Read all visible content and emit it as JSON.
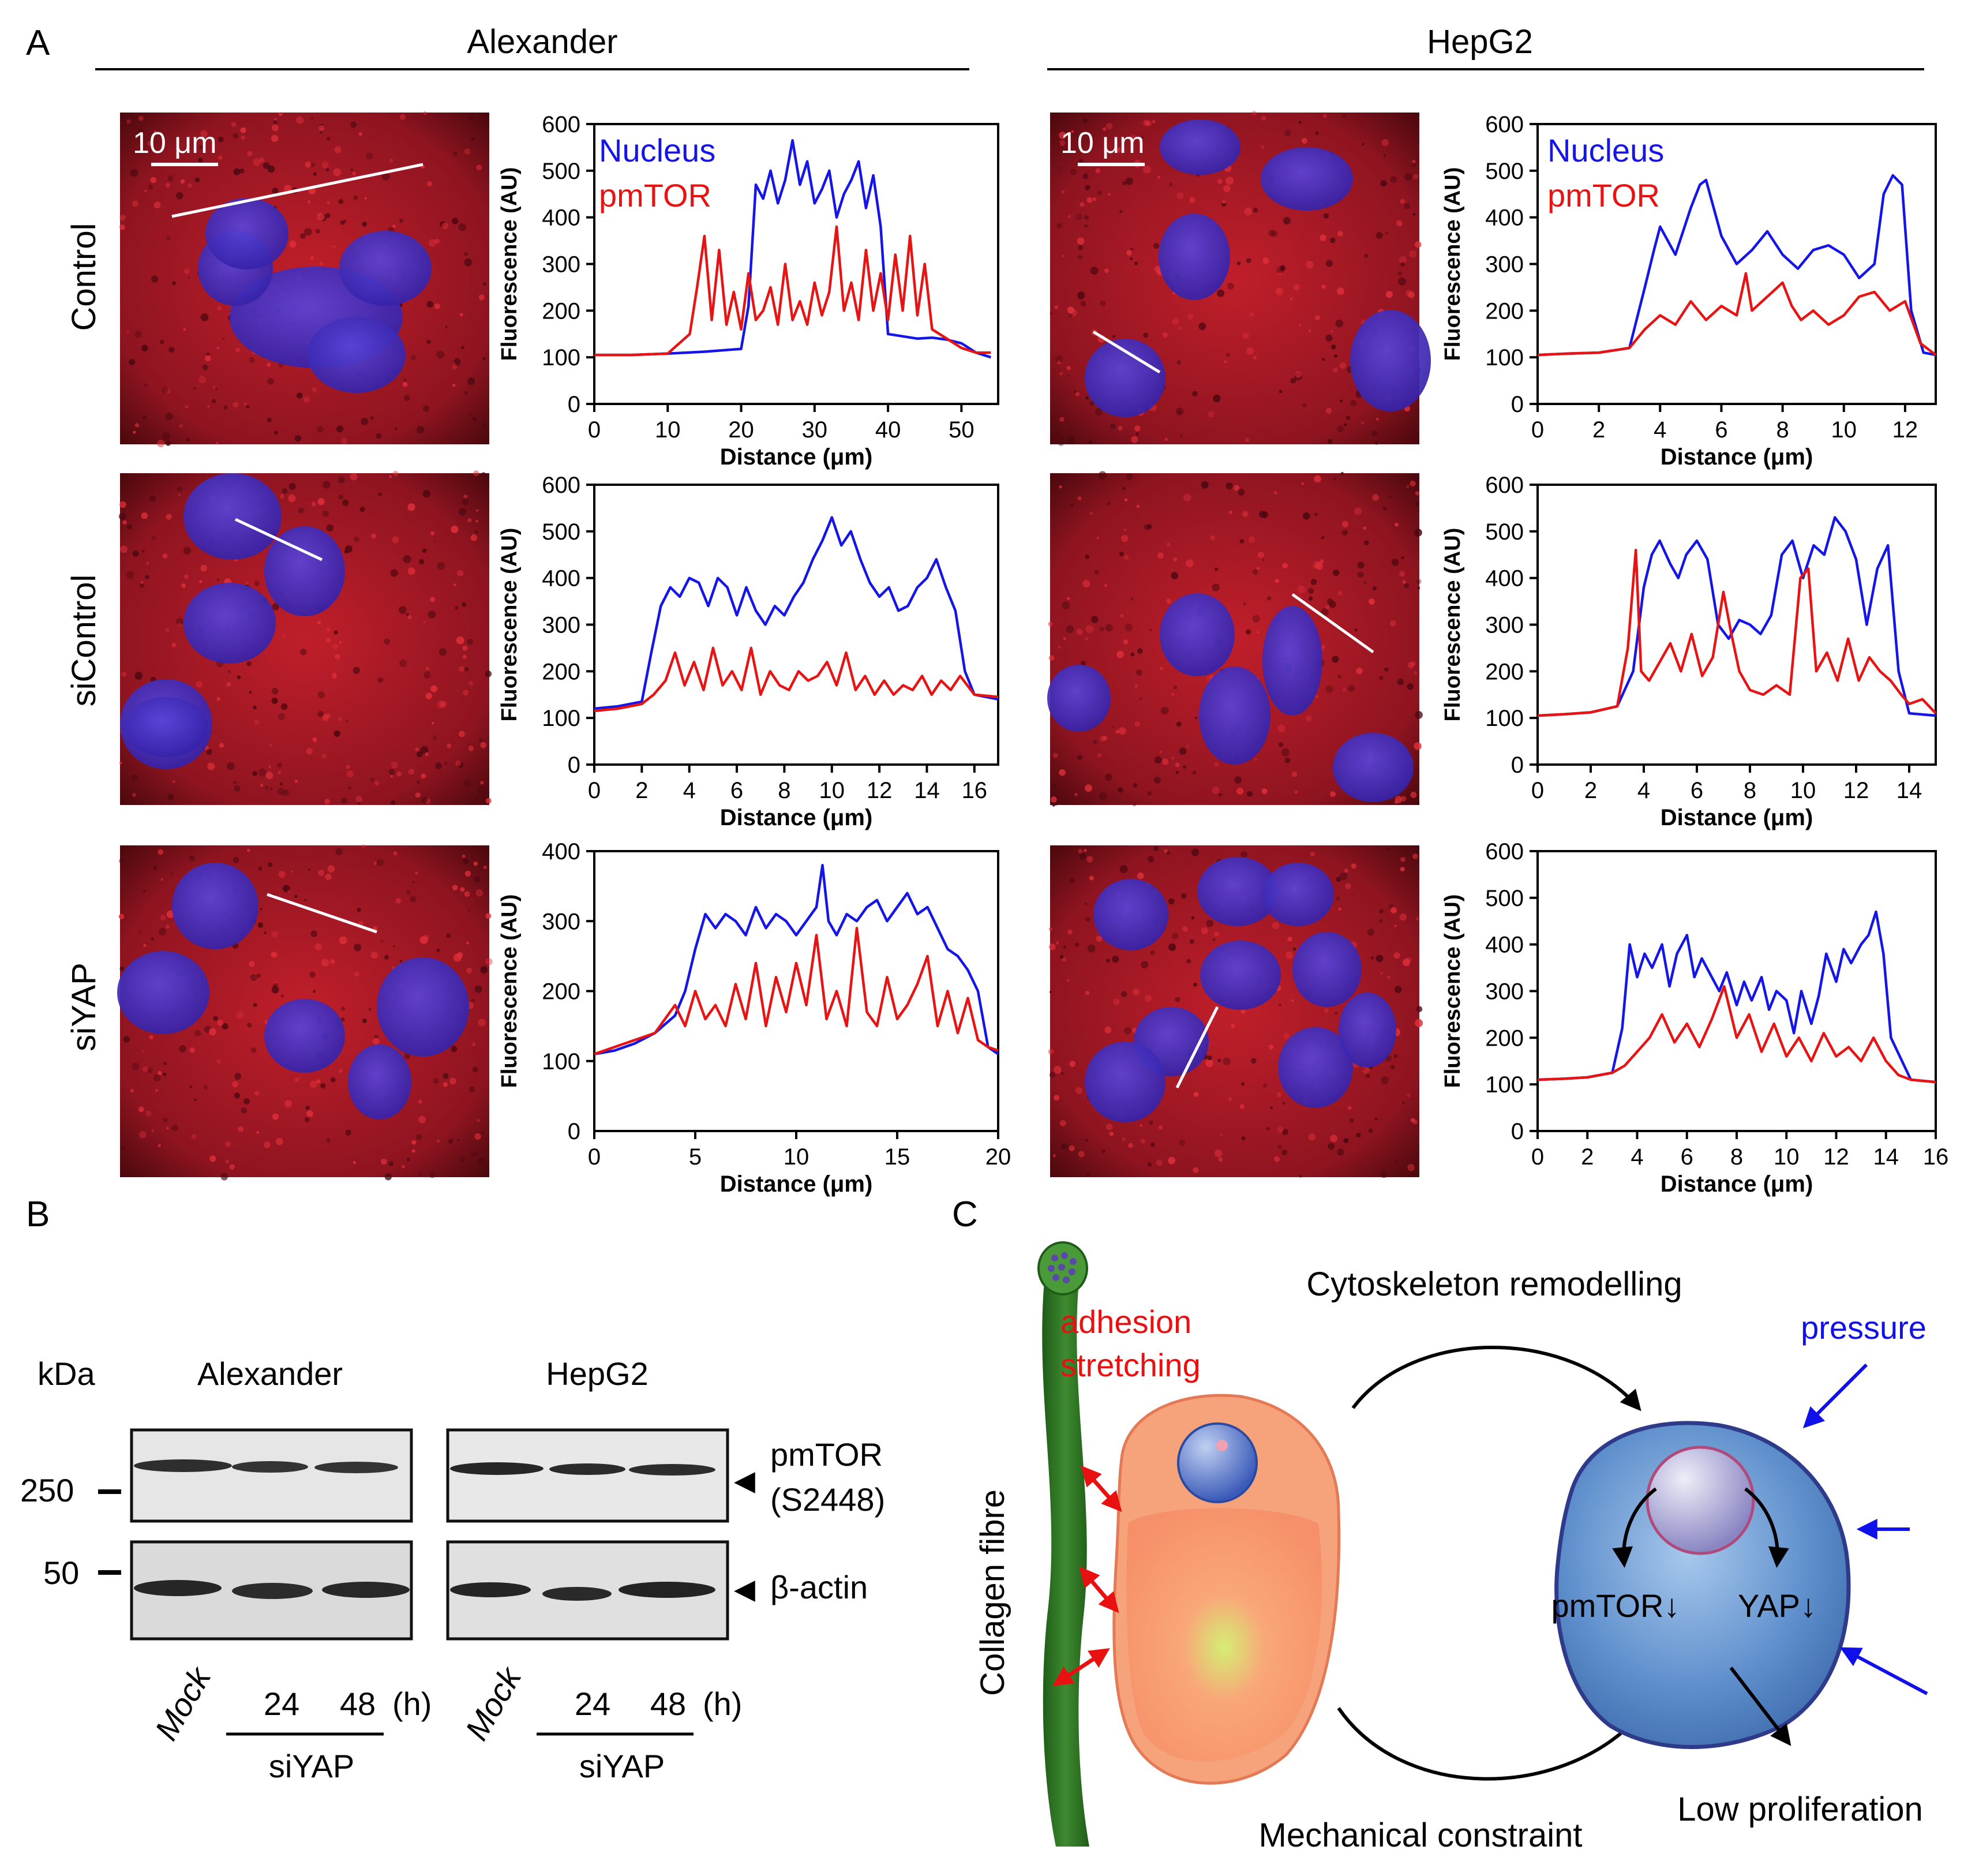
{
  "panel_labels": {
    "a": "A",
    "b": "B",
    "c": "C"
  },
  "groups": {
    "left": "Alexander",
    "right": "HepG2"
  },
  "row_labels": [
    "Control",
    "siControl",
    "siYAP"
  ],
  "scale_bar": "10 μm",
  "legend": {
    "nucleus": "Nucleus",
    "pmtor": "pmTOR"
  },
  "axis": {
    "x": "Distance (μm)",
    "y": "Fluorescence (AU)"
  },
  "colors": {
    "nucleus": "#1515e6",
    "pmtor": "#e61515",
    "cell_bg": "#7a0d16",
    "nucleus_fill": "#3d2ec8"
  },
  "chart_data": [
    {
      "type": "line",
      "id": "alex-control",
      "title": "",
      "xlabel": "Distance (μm)",
      "ylabel": "Fluorescence (AU)",
      "xlim": [
        0,
        55
      ],
      "ylim": [
        0,
        600
      ],
      "xticks": [
        0,
        10,
        20,
        30,
        40,
        50
      ],
      "yticks": [
        0,
        100,
        200,
        300,
        400,
        500,
        600
      ],
      "legend": true,
      "series": [
        {
          "name": "Nucleus",
          "color": "#1515e6",
          "x": [
            0,
            5,
            10,
            15,
            20,
            21,
            22,
            23,
            24,
            25,
            26,
            27,
            28,
            29,
            30,
            31,
            32,
            33,
            34,
            35,
            36,
            37,
            38,
            39,
            40,
            42,
            44,
            46,
            48,
            50,
            52,
            54
          ],
          "y": [
            105,
            105,
            108,
            112,
            118,
            210,
            470,
            440,
            500,
            430,
            480,
            565,
            470,
            520,
            430,
            460,
            500,
            400,
            450,
            480,
            520,
            420,
            490,
            380,
            150,
            145,
            140,
            142,
            138,
            130,
            110,
            100
          ]
        },
        {
          "name": "pmTOR",
          "color": "#e61515",
          "x": [
            0,
            5,
            10,
            13,
            14,
            15,
            16,
            17,
            18,
            19,
            20,
            21,
            22,
            23,
            24,
            25,
            26,
            27,
            28,
            29,
            30,
            31,
            32,
            33,
            34,
            35,
            36,
            37,
            38,
            39,
            40,
            41,
            42,
            43,
            44,
            45,
            46,
            48,
            50,
            52,
            54
          ],
          "y": [
            105,
            105,
            108,
            150,
            250,
            360,
            180,
            330,
            170,
            240,
            160,
            280,
            180,
            200,
            250,
            170,
            300,
            180,
            220,
            170,
            260,
            190,
            240,
            380,
            200,
            260,
            180,
            330,
            200,
            280,
            180,
            320,
            200,
            360,
            190,
            300,
            160,
            140,
            120,
            110,
            110
          ]
        }
      ]
    },
    {
      "type": "line",
      "id": "hep-control",
      "title": "",
      "xlabel": "Distance (μm)",
      "ylabel": "Fluorescence (AU)",
      "xlim": [
        0,
        13
      ],
      "ylim": [
        0,
        600
      ],
      "xticks": [
        0,
        2,
        4,
        6,
        8,
        10,
        12
      ],
      "yticks": [
        0,
        100,
        200,
        300,
        400,
        500,
        600
      ],
      "legend": true,
      "series": [
        {
          "name": "Nucleus",
          "color": "#1515e6",
          "x": [
            0,
            1,
            2,
            3,
            3.5,
            3.8,
            4,
            4.5,
            5,
            5.3,
            5.5,
            6,
            6.5,
            7,
            7.5,
            8,
            8.5,
            9,
            9.5,
            10,
            10.5,
            11,
            11.3,
            11.6,
            11.9,
            12.2,
            12.6,
            13
          ],
          "y": [
            105,
            108,
            110,
            120,
            250,
            330,
            380,
            320,
            420,
            470,
            480,
            360,
            300,
            330,
            370,
            320,
            290,
            330,
            340,
            320,
            270,
            300,
            450,
            490,
            470,
            200,
            110,
            105
          ]
        },
        {
          "name": "pmTOR",
          "color": "#e61515",
          "x": [
            0,
            1,
            2,
            3,
            3.5,
            4,
            4.5,
            5,
            5.5,
            6,
            6.5,
            6.8,
            7,
            7.5,
            8,
            8.3,
            8.6,
            9,
            9.5,
            10,
            10.5,
            11,
            11.5,
            12,
            12.5,
            13
          ],
          "y": [
            105,
            108,
            110,
            120,
            160,
            190,
            170,
            220,
            180,
            210,
            190,
            280,
            200,
            230,
            260,
            210,
            180,
            200,
            170,
            190,
            230,
            240,
            200,
            220,
            130,
            105
          ]
        }
      ]
    },
    {
      "type": "line",
      "id": "alex-sicontrol",
      "title": "",
      "xlabel": "Distance (μm)",
      "ylabel": "Fluorescence (AU)",
      "xlim": [
        0,
        17
      ],
      "ylim": [
        0,
        600
      ],
      "xticks": [
        0,
        2,
        4,
        6,
        8,
        10,
        12,
        14,
        16
      ],
      "yticks": [
        0,
        100,
        200,
        300,
        400,
        500,
        600
      ],
      "legend": false,
      "series": [
        {
          "name": "Nucleus",
          "color": "#1515e6",
          "x": [
            0,
            1,
            2,
            2.4,
            2.8,
            3.2,
            3.6,
            4,
            4.4,
            4.8,
            5.2,
            5.6,
            6,
            6.4,
            6.8,
            7.2,
            7.6,
            8,
            8.4,
            8.8,
            9.2,
            9.6,
            10,
            10.4,
            10.8,
            11.2,
            11.6,
            12,
            12.4,
            12.8,
            13.2,
            13.6,
            14,
            14.4,
            14.8,
            15.2,
            15.6,
            16,
            17
          ],
          "y": [
            120,
            125,
            135,
            240,
            340,
            380,
            360,
            400,
            390,
            340,
            400,
            380,
            320,
            380,
            330,
            300,
            340,
            320,
            360,
            390,
            440,
            480,
            530,
            470,
            500,
            440,
            390,
            360,
            380,
            330,
            340,
            380,
            400,
            440,
            380,
            330,
            200,
            150,
            140
          ]
        },
        {
          "name": "pmTOR",
          "color": "#e61515",
          "x": [
            0,
            1,
            2,
            2.5,
            3,
            3.4,
            3.8,
            4.2,
            4.6,
            5,
            5.4,
            5.8,
            6.2,
            6.6,
            7,
            7.4,
            7.8,
            8.2,
            8.6,
            9,
            9.4,
            9.8,
            10.2,
            10.6,
            11,
            11.4,
            11.8,
            12.2,
            12.6,
            13,
            13.4,
            13.8,
            14.2,
            14.6,
            15,
            15.4,
            16,
            17
          ],
          "y": [
            115,
            120,
            130,
            150,
            180,
            240,
            170,
            220,
            160,
            250,
            170,
            200,
            160,
            250,
            150,
            200,
            170,
            160,
            200,
            180,
            190,
            220,
            170,
            240,
            160,
            190,
            150,
            180,
            150,
            170,
            160,
            190,
            150,
            180,
            160,
            190,
            150,
            145
          ]
        }
      ]
    },
    {
      "type": "line",
      "id": "hep-sicontrol",
      "title": "",
      "xlabel": "Distance (μm)",
      "ylabel": "Fluorescence (AU)",
      "xlim": [
        0,
        15
      ],
      "ylim": [
        0,
        600
      ],
      "xticks": [
        0,
        2,
        4,
        6,
        8,
        10,
        12,
        14
      ],
      "yticks": [
        0,
        100,
        200,
        300,
        400,
        500,
        600
      ],
      "legend": false,
      "series": [
        {
          "name": "Nucleus",
          "color": "#1515e6",
          "x": [
            0,
            1,
            2,
            3,
            3.6,
            4,
            4.3,
            4.6,
            5,
            5.3,
            5.6,
            6,
            6.4,
            6.8,
            7.2,
            7.6,
            8,
            8.4,
            8.8,
            9.2,
            9.6,
            10,
            10.4,
            10.8,
            11.2,
            11.6,
            12,
            12.4,
            12.8,
            13.2,
            13.6,
            14,
            15
          ],
          "y": [
            105,
            108,
            112,
            125,
            200,
            380,
            450,
            480,
            430,
            400,
            450,
            480,
            440,
            300,
            270,
            310,
            300,
            280,
            320,
            450,
            480,
            400,
            470,
            450,
            530,
            500,
            440,
            300,
            420,
            470,
            200,
            110,
            105
          ]
        },
        {
          "name": "pmTOR",
          "color": "#e61515",
          "x": [
            0,
            1,
            2,
            3,
            3.4,
            3.7,
            3.9,
            4.2,
            4.6,
            5,
            5.4,
            5.8,
            6.2,
            6.6,
            7,
            7.3,
            7.6,
            8,
            8.5,
            9,
            9.5,
            9.9,
            10.2,
            10.5,
            10.9,
            11.3,
            11.7,
            12.1,
            12.5,
            12.9,
            13.3,
            13.7,
            14,
            14.5,
            15
          ],
          "y": [
            105,
            108,
            112,
            125,
            250,
            460,
            200,
            180,
            220,
            260,
            200,
            280,
            190,
            230,
            370,
            280,
            200,
            160,
            150,
            170,
            150,
            400,
            420,
            200,
            240,
            180,
            270,
            180,
            230,
            200,
            180,
            150,
            130,
            140,
            110
          ]
        }
      ]
    },
    {
      "type": "line",
      "id": "alex-siyap",
      "title": "",
      "xlabel": "Distance (μm)",
      "ylabel": "Fluorescence (AU)",
      "xlim": [
        0,
        20
      ],
      "ylim": [
        0,
        400
      ],
      "xticks": [
        0,
        5,
        10,
        15,
        20
      ],
      "yticks": [
        100,
        200,
        300,
        400
      ],
      "legend": false,
      "series": [
        {
          "name": "Nucleus",
          "color": "#1515e6",
          "x": [
            0,
            1,
            2,
            3,
            4,
            4.5,
            5,
            5.5,
            6,
            6.5,
            7,
            7.5,
            8,
            8.5,
            9,
            9.5,
            10,
            10.5,
            11,
            11.3,
            11.6,
            12,
            12.5,
            13,
            13.5,
            14,
            14.5,
            15,
            15.5,
            16,
            16.5,
            17,
            17.5,
            18,
            18.5,
            19,
            19.5,
            20
          ],
          "y": [
            110,
            115,
            125,
            140,
            165,
            200,
            260,
            310,
            290,
            310,
            300,
            280,
            320,
            290,
            310,
            300,
            280,
            300,
            320,
            380,
            300,
            280,
            310,
            300,
            320,
            330,
            300,
            320,
            340,
            310,
            320,
            290,
            260,
            250,
            230,
            200,
            120,
            110
          ]
        },
        {
          "name": "pmTOR",
          "color": "#e61515",
          "x": [
            0,
            1,
            2,
            3,
            3.5,
            4,
            4.5,
            5,
            5.5,
            6,
            6.5,
            7,
            7.5,
            8,
            8.5,
            9,
            9.5,
            10,
            10.5,
            11,
            11.5,
            12,
            12.5,
            13,
            13.5,
            14,
            14.5,
            15,
            15.5,
            16,
            16.5,
            17,
            17.5,
            18,
            18.5,
            19,
            19.5,
            20
          ],
          "y": [
            110,
            120,
            130,
            140,
            160,
            180,
            150,
            200,
            160,
            180,
            150,
            210,
            160,
            240,
            150,
            220,
            170,
            240,
            180,
            280,
            160,
            200,
            150,
            290,
            170,
            150,
            220,
            160,
            180,
            210,
            250,
            150,
            200,
            140,
            190,
            130,
            120,
            115
          ]
        }
      ]
    },
    {
      "type": "line",
      "id": "hep-siyap",
      "title": "",
      "xlabel": "Distance (μm)",
      "ylabel": "Fluorescence (AU)",
      "xlim": [
        0,
        16
      ],
      "ylim": [
        0,
        600
      ],
      "xticks": [
        0,
        2,
        4,
        6,
        8,
        10,
        12,
        14,
        16
      ],
      "yticks": [
        0,
        100,
        200,
        300,
        400,
        500,
        600
      ],
      "legend": false,
      "series": [
        {
          "name": "Nucleus",
          "color": "#1515e6",
          "x": [
            0,
            1,
            2,
            3,
            3.4,
            3.7,
            4,
            4.3,
            4.6,
            5,
            5.3,
            5.6,
            6,
            6.3,
            6.6,
            7,
            7.3,
            7.6,
            8,
            8.3,
            8.6,
            9,
            9.3,
            9.6,
            10,
            10.3,
            10.6,
            11,
            11.3,
            11.6,
            12,
            12.3,
            12.6,
            13,
            13.3,
            13.6,
            13.9,
            14.2,
            15,
            16
          ],
          "y": [
            110,
            112,
            115,
            125,
            220,
            400,
            330,
            380,
            350,
            400,
            310,
            380,
            420,
            330,
            370,
            330,
            300,
            340,
            270,
            320,
            280,
            330,
            260,
            300,
            280,
            210,
            300,
            230,
            290,
            380,
            320,
            390,
            360,
            400,
            420,
            470,
            380,
            200,
            110,
            105
          ]
        },
        {
          "name": "pmTOR",
          "color": "#e61515",
          "x": [
            0,
            1,
            2,
            3,
            3.5,
            4,
            4.5,
            5,
            5.5,
            6,
            6.5,
            7,
            7.5,
            8,
            8.5,
            9,
            9.5,
            10,
            10.5,
            11,
            11.5,
            12,
            12.5,
            13,
            13.5,
            14,
            14.5,
            15,
            16
          ],
          "y": [
            110,
            112,
            115,
            125,
            140,
            170,
            200,
            250,
            190,
            230,
            180,
            240,
            310,
            200,
            250,
            170,
            230,
            160,
            200,
            150,
            210,
            160,
            180,
            150,
            200,
            150,
            120,
            110,
            105
          ]
        }
      ]
    }
  ],
  "blot": {
    "kda": "kDa",
    "markers": [
      "250",
      "50"
    ],
    "groups": [
      "Alexander",
      "HepG2"
    ],
    "targets": [
      "pmTOR",
      "(S2448)",
      "β-actin"
    ],
    "lane_mock": "Mock",
    "lane_times": [
      "24",
      "48"
    ],
    "unit": "(h)",
    "sirna": "siYAP"
  },
  "diagram": {
    "fibre": "Collagen fibre",
    "adhesion_1": "adhesion",
    "adhesion_2": "stretching",
    "remodel": "Cytoskeleton remodelling",
    "pressure": "pressure",
    "pmtor": "pmTOR↓",
    "yap": "YAP↓",
    "mech": "Mechanical constraint",
    "lowprolif": "Low proliferation"
  }
}
